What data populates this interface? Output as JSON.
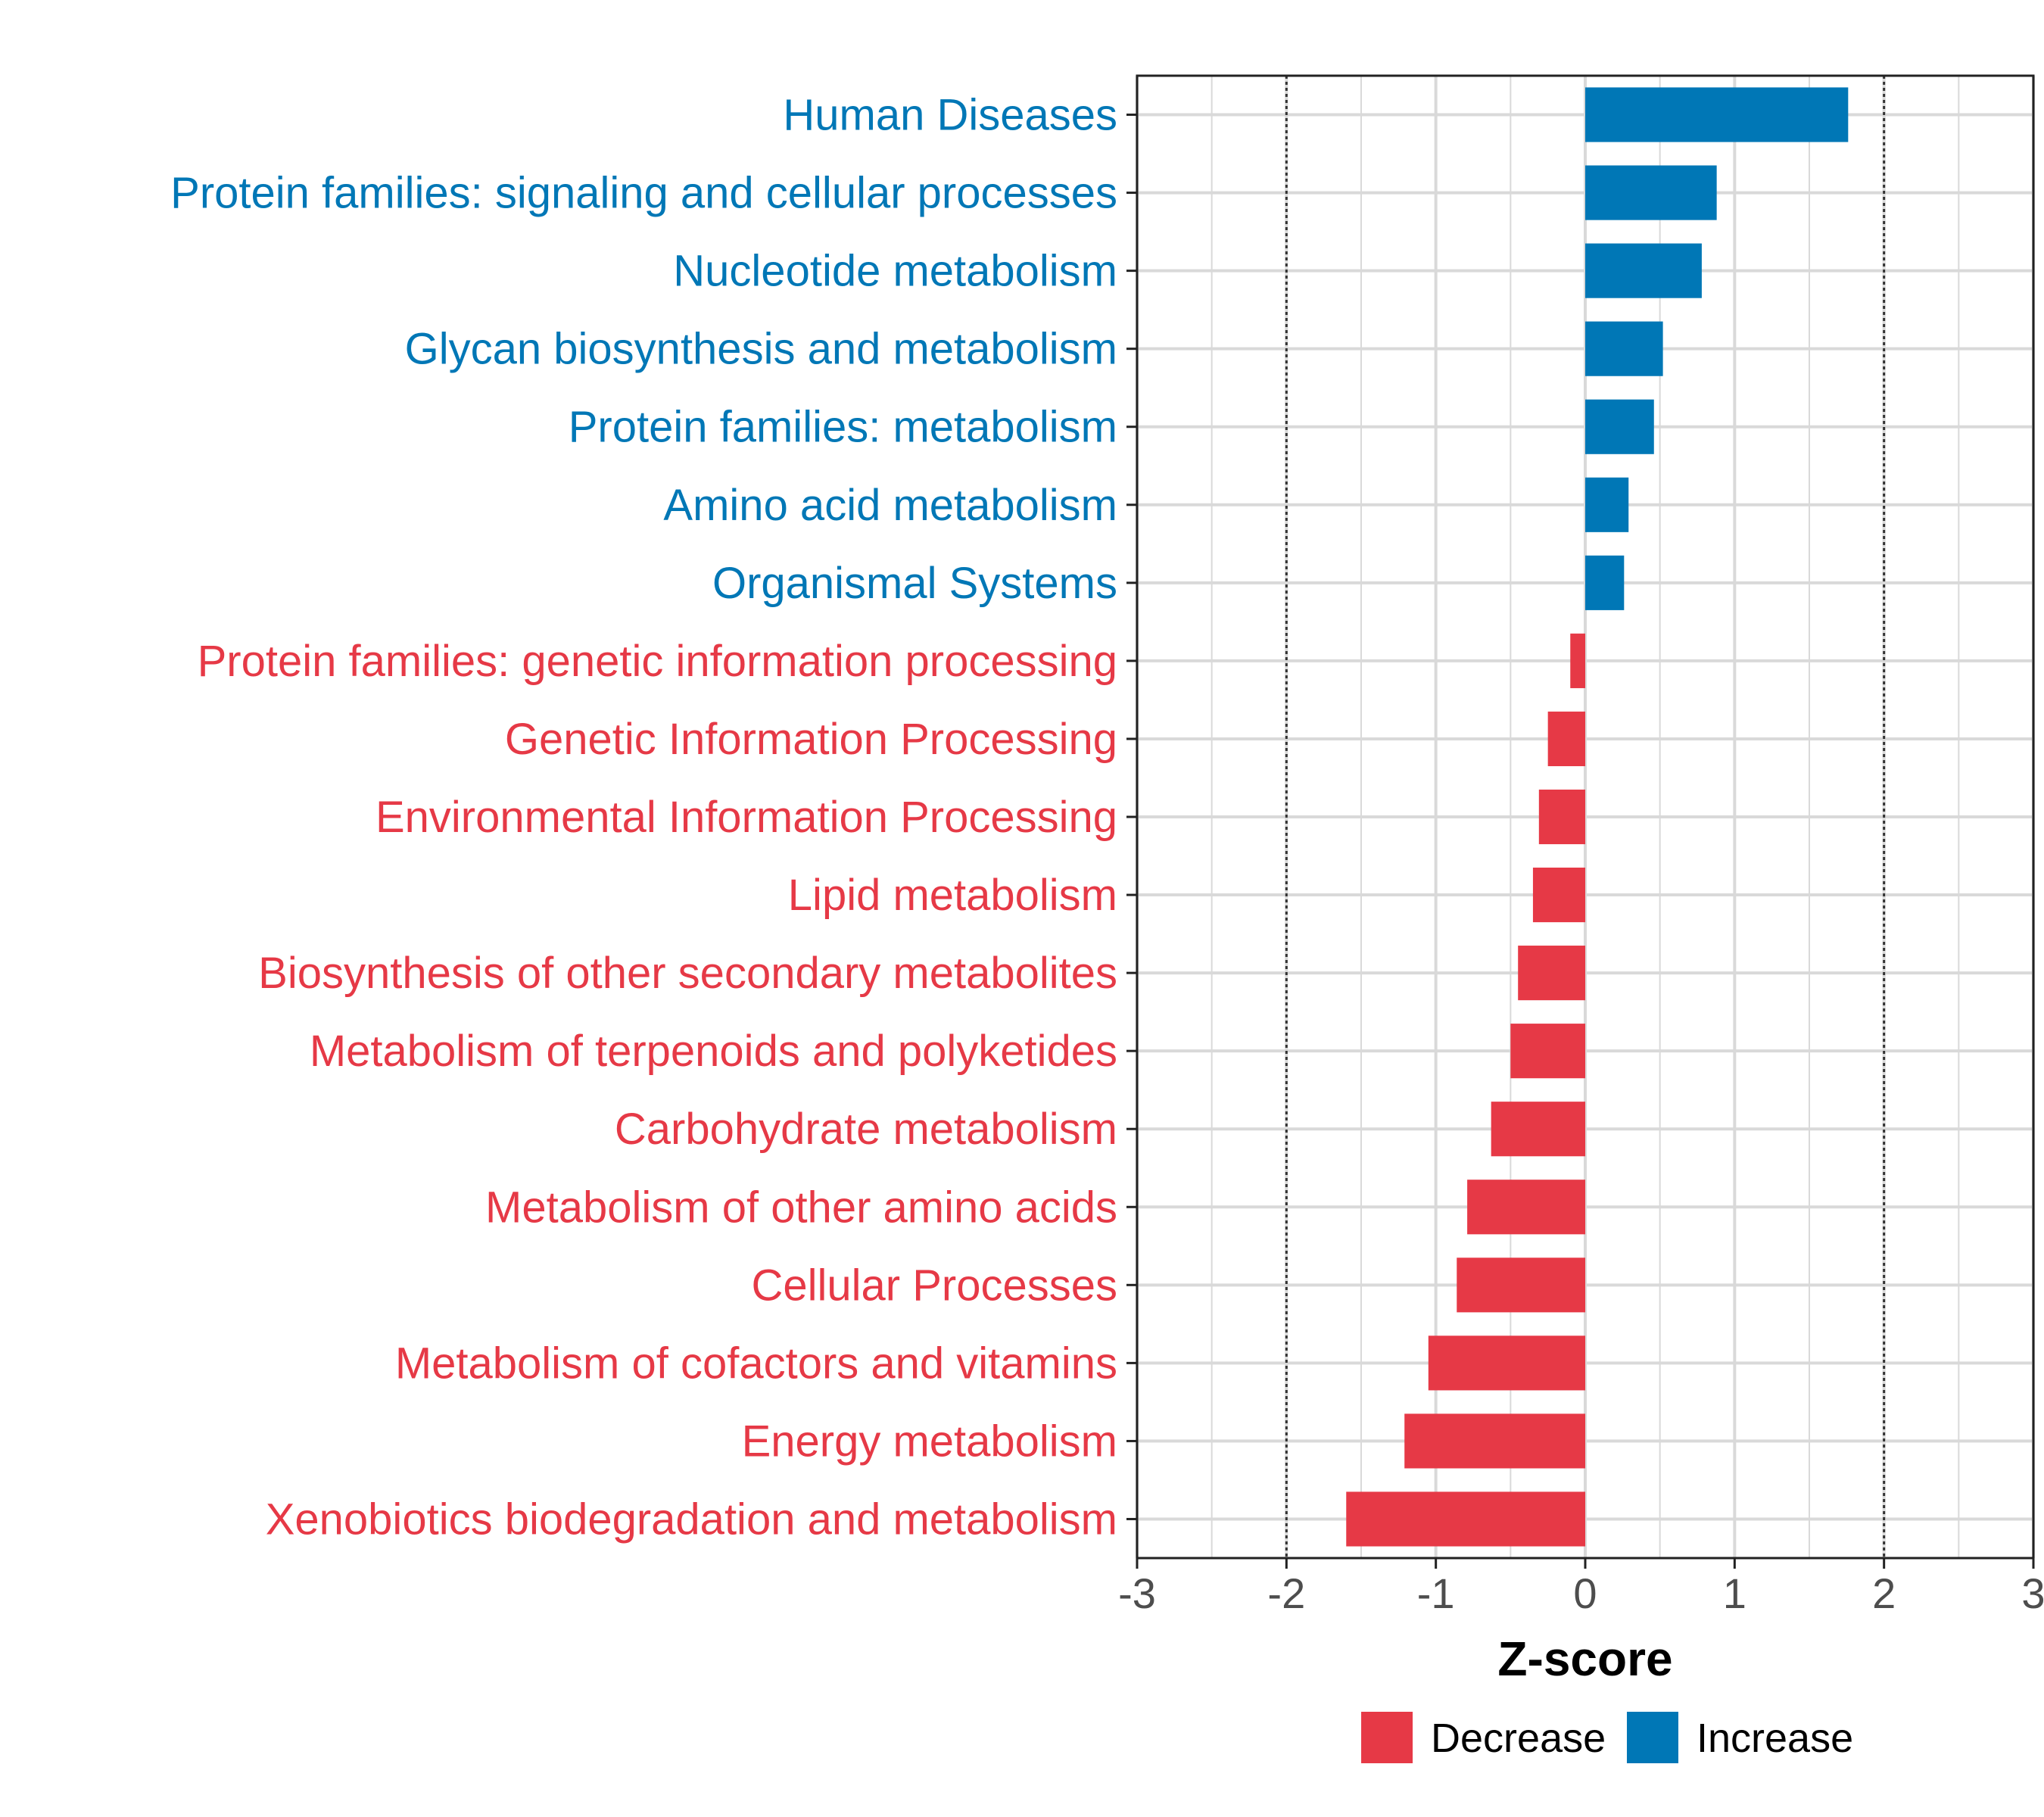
{
  "chart_data": {
    "type": "bar",
    "orientation": "horizontal",
    "categories": [
      "Human Diseases",
      "Protein families: signaling and cellular processes",
      "Nucleotide metabolism",
      "Glycan biosynthesis and metabolism",
      "Protein families: metabolism",
      "Amino acid metabolism",
      "Organismal Systems",
      "Protein families: genetic information processing",
      "Genetic Information Processing",
      "Environmental Information Processing",
      "Lipid metabolism",
      "Biosynthesis of other secondary metabolites",
      "Metabolism of terpenoids and polyketides",
      "Carbohydrate metabolism",
      "Metabolism of other amino acids",
      "Cellular Processes",
      "Metabolism of cofactors and vitamins",
      "Energy metabolism",
      "Xenobiotics biodegradation and metabolism"
    ],
    "values": [
      1.76,
      0.88,
      0.78,
      0.52,
      0.46,
      0.29,
      0.26,
      -0.1,
      -0.25,
      -0.31,
      -0.35,
      -0.45,
      -0.5,
      -0.63,
      -0.79,
      -0.86,
      -1.05,
      -1.21,
      -1.6
    ],
    "groups": [
      "Increase",
      "Increase",
      "Increase",
      "Increase",
      "Increase",
      "Increase",
      "Increase",
      "Decrease",
      "Decrease",
      "Decrease",
      "Decrease",
      "Decrease",
      "Decrease",
      "Decrease",
      "Decrease",
      "Decrease",
      "Decrease",
      "Decrease",
      "Decrease"
    ],
    "xlabel": "Z-score",
    "ylabel": "",
    "xlim": [
      -3,
      3
    ],
    "x_ticks": [
      -3,
      -2,
      -1,
      0,
      1,
      2,
      3
    ],
    "x_tick_labels": [
      "-3",
      "-2",
      "-1",
      "0",
      "1",
      "2",
      "3"
    ],
    "reference_lines": [
      -2,
      2
    ],
    "grid": true,
    "legend": {
      "position": "bottom",
      "entries": [
        {
          "label": "Decrease",
          "color": "#e63946"
        },
        {
          "label": "Increase",
          "color": "#0077b6"
        }
      ]
    },
    "colors": {
      "Increase": "#0077b6",
      "Decrease": "#e63946"
    }
  }
}
